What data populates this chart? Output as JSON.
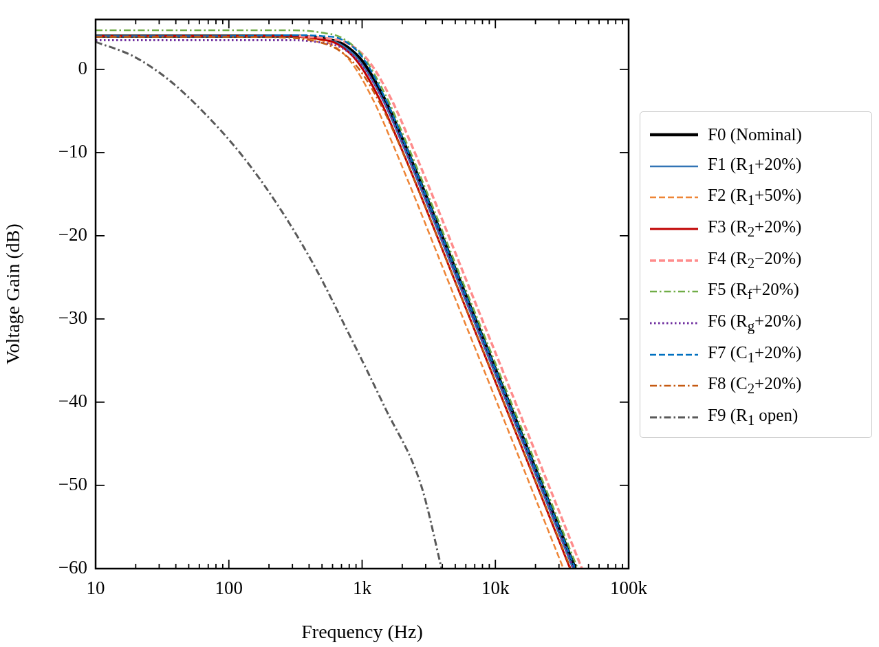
{
  "chart_data": {
    "type": "line",
    "xlabel": "Frequency (Hz)",
    "ylabel": "Voltage Gain (dB)",
    "log": "x",
    "grid": false,
    "legend": "right",
    "marker": "none",
    "xlim": [
      10,
      100000
    ],
    "ylim": [
      -60,
      6
    ],
    "xticks": [
      10,
      {
        "value": 20,
        "label": null
      },
      {
        "value": 30,
        "label": null
      },
      {
        "value": 40,
        "label": null
      },
      {
        "value": 50,
        "label": null
      },
      {
        "value": 60,
        "label": null
      },
      {
        "value": 70,
        "label": null
      },
      {
        "value": 80,
        "label": null
      },
      {
        "value": 90,
        "label": null
      },
      100,
      {
        "value": 200,
        "label": null
      },
      {
        "value": 300,
        "label": null
      },
      {
        "value": 400,
        "label": null
      },
      {
        "value": 500,
        "label": null
      },
      {
        "value": 600,
        "label": null
      },
      {
        "value": 700,
        "label": null
      },
      {
        "value": 800,
        "label": null
      },
      {
        "value": 900,
        "label": null
      },
      {
        "value": 1000,
        "label": "1k"
      },
      {
        "value": 2000,
        "label": null
      },
      {
        "value": 3000,
        "label": null
      },
      {
        "value": 4000,
        "label": null
      },
      {
        "value": 5000,
        "label": null
      },
      {
        "value": 6000,
        "label": null
      },
      {
        "value": 7000,
        "label": null
      },
      {
        "value": 8000,
        "label": null
      },
      {
        "value": 9000,
        "label": null
      },
      {
        "value": 10000,
        "label": "10k"
      },
      {
        "value": 20000,
        "label": null
      },
      {
        "value": 30000,
        "label": null
      },
      {
        "value": 40000,
        "label": null
      },
      {
        "value": 50000,
        "label": null
      },
      {
        "value": 60000,
        "label": null
      },
      {
        "value": 70000,
        "label": null
      },
      {
        "value": 80000,
        "label": null
      },
      {
        "value": 90000,
        "label": null
      },
      {
        "value": 100000,
        "label": "100k"
      }
    ],
    "yticks": [
      {
        "value": -60,
        "label": "−60"
      },
      {
        "value": -50,
        "label": "−50"
      },
      {
        "value": -40,
        "label": "−40"
      },
      {
        "value": -30,
        "label": "−30"
      },
      {
        "value": -20,
        "label": "−20"
      },
      {
        "value": -10,
        "label": "−10"
      },
      0
    ],
    "series": [
      {
        "name": "F0 (Nominal)",
        "color": "#000000",
        "line_style": "solid",
        "x": [
          10,
          100,
          300,
          500,
          700,
          1000,
          1500,
          2000,
          3000,
          5000,
          10000,
          20000,
          39800
        ],
        "values": [
          4.0,
          4.0,
          4.0,
          3.7,
          3.1,
          1.0,
          -3.8,
          -8.3,
          -15.1,
          -24.0,
          -36.0,
          -48.0,
          -60
        ]
      },
      {
        "name": "F1 (R$_{1}$+20%)",
        "color": "#3274b5",
        "line_style": "solid",
        "x": [
          10,
          100,
          288,
          480,
          672,
          960,
          1440,
          1920,
          2880,
          4800,
          9600,
          19200,
          38200
        ],
        "values": [
          4.0,
          4.0,
          4.0,
          3.7,
          3.1,
          1.0,
          -3.8,
          -8.3,
          -15.1,
          -24.0,
          -36.0,
          -48.0,
          -60
        ]
      },
      {
        "name": "F2 (R$_{1}$+50%)",
        "color": "#ee8536",
        "line_style": "dashed",
        "x": [
          10,
          100,
          244,
          407,
          570,
          814,
          1221,
          1628,
          2442,
          4070,
          8140,
          16280,
          32400
        ],
        "values": [
          4.0,
          4.0,
          4.0,
          3.7,
          3.1,
          1.0,
          -3.8,
          -8.3,
          -15.1,
          -24.0,
          -36.0,
          -48.0,
          -60
        ]
      },
      {
        "name": "F3 (R$_{2}$+20%)",
        "color": "#c00000",
        "line_style": "solid",
        "x": [
          10,
          100,
          275,
          458,
          641,
          915,
          1373,
          1830,
          2745,
          4575,
          9150,
          18300,
          36400
        ],
        "values": [
          4.0,
          4.0,
          4.0,
          3.7,
          3.1,
          1.0,
          -3.8,
          -8.3,
          -15.1,
          -24.0,
          -36.0,
          -48.0,
          -60
        ]
      },
      {
        "name": "F4 (R$_{2}$−20%)",
        "color": "#ff8c8c",
        "line_style": "dashed",
        "x": [
          336,
          560,
          784,
          1120,
          1680,
          2240,
          3360,
          5600,
          11200,
          22400,
          44600
        ],
        "values": [
          4.0,
          3.7,
          3.1,
          1.0,
          -3.8,
          -8.3,
          -15.1,
          -24.0,
          -36.0,
          -48.0,
          -60
        ]
      },
      {
        "name": "F5 (R$_{f}$+20%)",
        "color": "#70ad47",
        "line_style": "dashdot",
        "x": [
          10,
          100,
          300,
          500,
          700,
          1000,
          1500,
          2000,
          3000,
          5000,
          10000,
          20000,
          41500
        ],
        "values": [
          4.7,
          4.7,
          4.7,
          4.4,
          3.8,
          1.7,
          -3.1,
          -7.6,
          -14.4,
          -23.3,
          -35.3,
          -47.3,
          -60
        ]
      },
      {
        "name": "F6 (R$_{g}$+20%)",
        "color": "#7030a0",
        "line_style": "dotted",
        "x": [
          10,
          100,
          300,
          500,
          700,
          1000,
          1500,
          2000,
          3000,
          5000,
          10000,
          20000,
          38700
        ],
        "values": [
          3.5,
          3.5,
          3.5,
          3.2,
          2.6,
          0.5,
          -4.3,
          -8.8,
          -15.6,
          -24.5,
          -36.5,
          -48.5,
          -60
        ]
      },
      {
        "name": "F7 (C$_{1}$+20%)",
        "color": "#0070c0",
        "line_style": "dashed",
        "x": [
          10,
          100,
          300,
          500,
          700,
          1000,
          1500,
          2000,
          3000,
          5000,
          10000,
          20000,
          39800
        ],
        "values": [
          4.0,
          4.0,
          4.1,
          4.0,
          3.6,
          1.5,
          -3.6,
          -8.2,
          -15.1,
          -24.0,
          -36.0,
          -48.0,
          -60
        ]
      },
      {
        "name": "F8 (C$_{2}$+20%)",
        "color": "#c55a11",
        "line_style": "dashdot",
        "x": [
          10,
          100,
          279,
          465,
          651,
          930,
          1395,
          1860,
          2790,
          4650,
          9300,
          18600,
          36800
        ],
        "values": [
          3.9,
          3.9,
          3.8,
          3.3,
          2.4,
          0.2,
          -4.4,
          -8.7,
          -15.4,
          -24.3,
          -36.2,
          -48.2,
          -60
        ]
      },
      {
        "name": "F9 (R$_{1}$ open)",
        "color": "#595959",
        "line_style": "dashdot",
        "x": [
          10,
          19,
          35,
          65,
          122,
          228,
          427,
          796,
          1489,
          2786,
          3950
        ],
        "values": [
          3.3,
          1.6,
          -1.2,
          -5.2,
          -10.1,
          -16.1,
          -23.3,
          -31.8,
          -40.7,
          -50.1,
          -60
        ]
      }
    ]
  }
}
